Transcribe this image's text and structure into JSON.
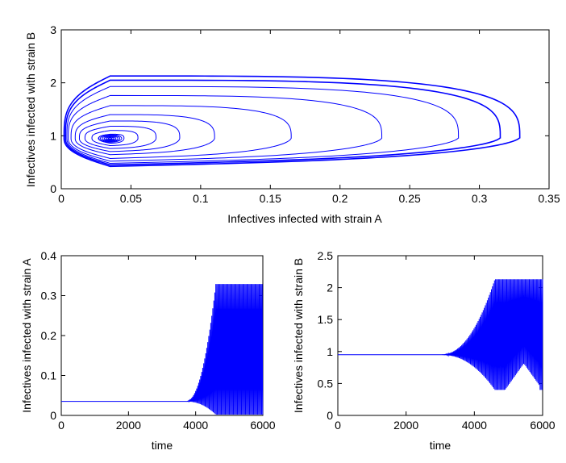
{
  "chart_data": [
    {
      "type": "line",
      "id": "phase",
      "xlabel": "Infectives infected with strain A",
      "ylabel": "Infectives infected with strain B",
      "xlim": [
        0,
        0.35
      ],
      "ylim": [
        0,
        3
      ],
      "xticks": [
        0,
        0.05,
        0.1,
        0.15,
        0.2,
        0.25,
        0.3,
        0.35
      ],
      "yticks": [
        0,
        1,
        2,
        3
      ],
      "xtick_labels": [
        "0",
        "0.05",
        "0.1",
        "0.15",
        "0.2",
        "0.25",
        "0.3",
        "0.35"
      ],
      "ytick_labels": [
        "0",
        "1",
        "2",
        "3"
      ],
      "grid": false,
      "color": "#0000ff",
      "center": [
        0.035,
        0.95
      ],
      "orbits": [
        {
          "xmin": 0.027,
          "xmax": 0.045,
          "ymin": 0.85,
          "ymax": 1.03
        },
        {
          "xmin": 0.022,
          "xmax": 0.055,
          "ymin": 0.8,
          "ymax": 1.1
        },
        {
          "xmin": 0.017,
          "xmax": 0.068,
          "ymin": 0.74,
          "ymax": 1.18
        },
        {
          "xmin": 0.013,
          "xmax": 0.085,
          "ymin": 0.68,
          "ymax": 1.28
        },
        {
          "xmin": 0.01,
          "xmax": 0.11,
          "ymin": 0.62,
          "ymax": 1.4
        },
        {
          "xmin": 0.007,
          "xmax": 0.165,
          "ymin": 0.55,
          "ymax": 1.57
        },
        {
          "xmin": 0.005,
          "xmax": 0.23,
          "ymin": 0.5,
          "ymax": 1.76
        },
        {
          "xmin": 0.004,
          "xmax": 0.285,
          "ymin": 0.46,
          "ymax": 1.93
        },
        {
          "xmin": 0.003,
          "xmax": 0.315,
          "ymin": 0.43,
          "ymax": 2.05
        },
        {
          "xmin": 0.002,
          "xmax": 0.329,
          "ymin": 0.4,
          "ymax": 2.13
        }
      ]
    },
    {
      "type": "line",
      "id": "strainA-time",
      "xlabel": "time",
      "ylabel": "Infectives infected with strain A",
      "xlim": [
        0,
        6000
      ],
      "ylim": [
        0,
        0.4
      ],
      "xticks": [
        0,
        2000,
        4000,
        6000
      ],
      "yticks": [
        0,
        0.1,
        0.2,
        0.3,
        0.4
      ],
      "xtick_labels": [
        "0",
        "2000",
        "4000",
        "6000"
      ],
      "ytick_labels": [
        "0",
        "0.1",
        "0.2",
        "0.3",
        "0.4"
      ],
      "grid": false,
      "color": "#0000ff",
      "baseline": 0.035,
      "onset": 3700,
      "saturation": 4600,
      "peak": 0.329,
      "trough": 0.002,
      "period": 30
    },
    {
      "type": "line",
      "id": "strainB-time",
      "xlabel": "time",
      "ylabel": "Infectives infected with strain B",
      "xlim": [
        0,
        6000
      ],
      "ylim": [
        0,
        2.5
      ],
      "xticks": [
        0,
        2000,
        4000,
        6000
      ],
      "yticks": [
        0,
        0.5,
        1,
        1.5,
        2,
        2.5
      ],
      "xtick_labels": [
        "0",
        "2000",
        "4000",
        "6000"
      ],
      "ytick_labels": [
        "0",
        "0.5",
        "1",
        "1.5",
        "2",
        "2.5"
      ],
      "grid": false,
      "color": "#0000ff",
      "baseline": 0.95,
      "onset": 3000,
      "saturation": 4600,
      "peak": 2.13,
      "trough": 0.4,
      "period": 30
    }
  ]
}
